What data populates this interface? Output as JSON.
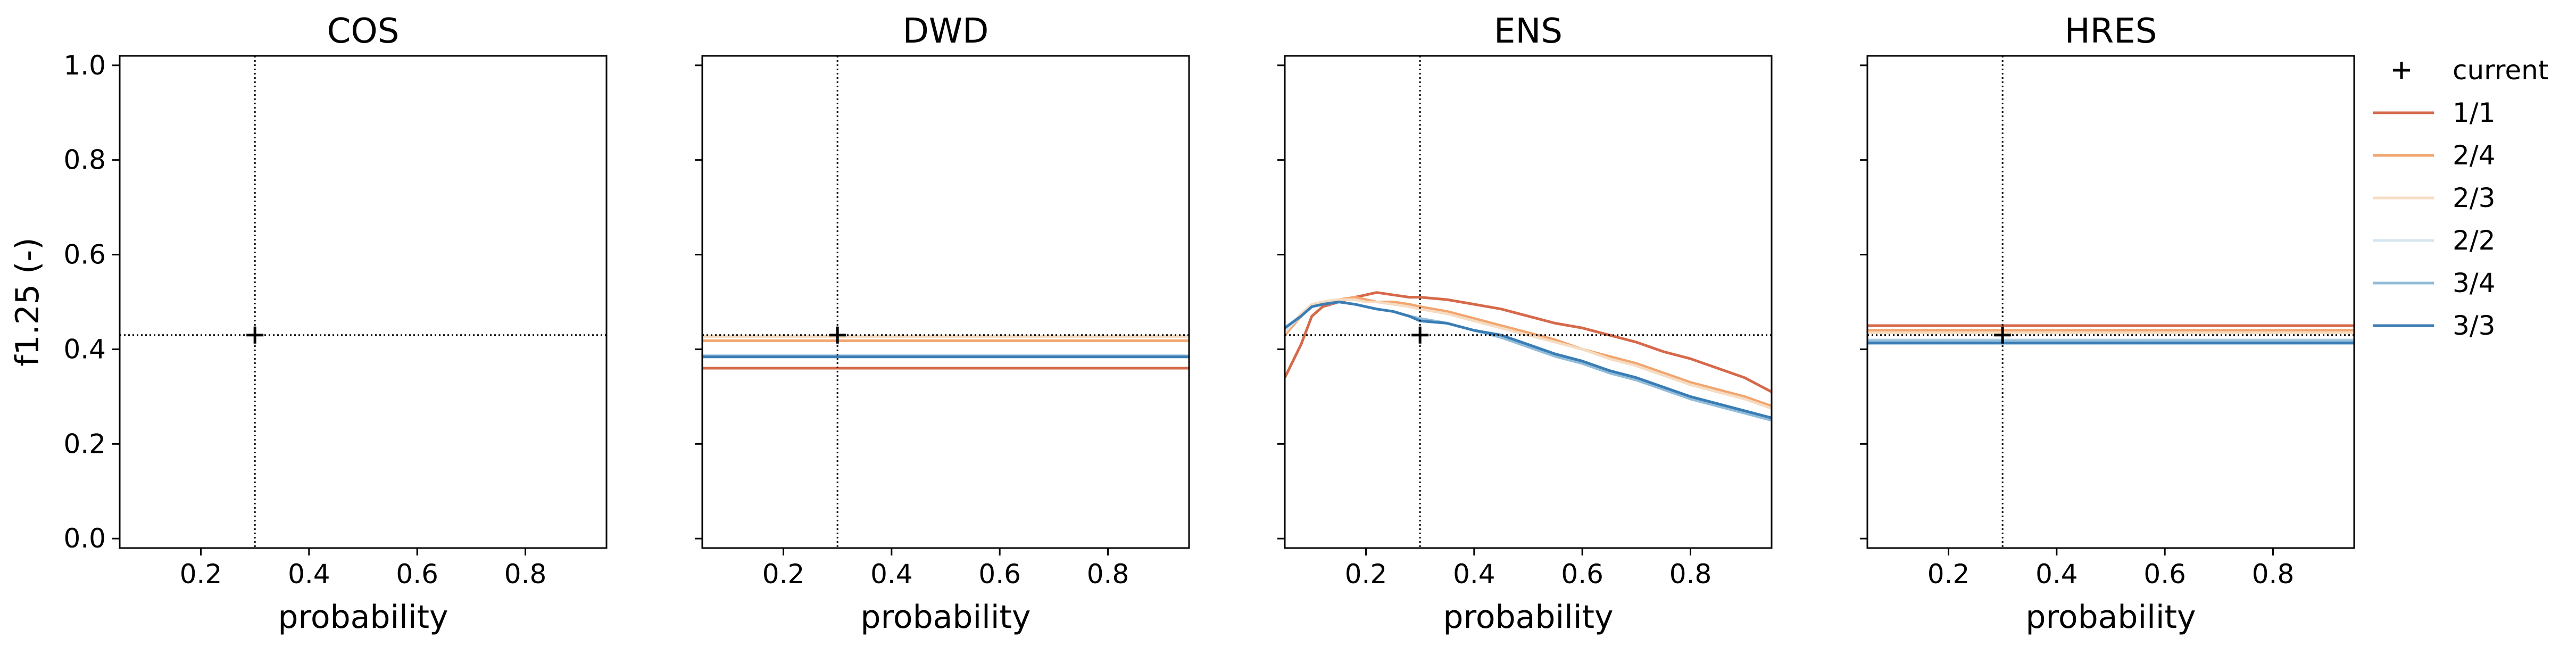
{
  "chart_data": [
    {
      "type": "line",
      "title": "COS",
      "xlabel": "probability",
      "ylabel": "f1.25 (-)",
      "xlim": [
        0.05,
        0.95
      ],
      "ylim": [
        -0.02,
        1.02
      ],
      "xticks": [
        "0.2",
        "0.4",
        "0.6",
        "0.8"
      ],
      "yticks": [
        "0.0",
        "0.2",
        "0.4",
        "0.6",
        "0.8",
        "1.0"
      ],
      "current": {
        "x": 0.3,
        "y": 0.43
      },
      "series": []
    },
    {
      "type": "line",
      "title": "DWD",
      "xlabel": "probability",
      "ylabel": "",
      "xlim": [
        0.05,
        0.95
      ],
      "ylim": [
        -0.02,
        1.02
      ],
      "xticks": [
        "0.2",
        "0.4",
        "0.6",
        "0.8"
      ],
      "yticks": [],
      "current": {
        "x": 0.3,
        "y": 0.43
      },
      "series": [
        {
          "name": "1/1",
          "x": [
            0.05,
            0.95
          ],
          "values": [
            0.36,
            0.36
          ]
        },
        {
          "name": "2/4",
          "x": [
            0.05,
            0.95
          ],
          "values": [
            0.418,
            0.418
          ]
        },
        {
          "name": "2/3",
          "x": [
            0.05,
            0.95
          ],
          "values": [
            0.427,
            0.427
          ]
        },
        {
          "name": "2/2",
          "x": [
            0.05,
            0.95
          ],
          "values": [
            0.385,
            0.385
          ]
        },
        {
          "name": "3/4",
          "x": [
            0.05,
            0.95
          ],
          "values": [
            0.386,
            0.386
          ]
        },
        {
          "name": "3/3",
          "x": [
            0.05,
            0.95
          ],
          "values": [
            0.384,
            0.384
          ]
        }
      ]
    },
    {
      "type": "line",
      "title": "ENS",
      "xlabel": "probability",
      "ylabel": "",
      "xlim": [
        0.05,
        0.95
      ],
      "ylim": [
        -0.02,
        1.02
      ],
      "xticks": [
        "0.2",
        "0.4",
        "0.6",
        "0.8"
      ],
      "yticks": [],
      "current": {
        "x": 0.3,
        "y": 0.43
      },
      "series": [
        {
          "name": "1/1",
          "x": [
            0.05,
            0.08,
            0.1,
            0.12,
            0.15,
            0.18,
            0.2,
            0.22,
            0.25,
            0.28,
            0.3,
            0.35,
            0.4,
            0.45,
            0.5,
            0.55,
            0.6,
            0.65,
            0.7,
            0.75,
            0.8,
            0.85,
            0.9,
            0.95
          ],
          "values": [
            0.34,
            0.41,
            0.47,
            0.49,
            0.5,
            0.51,
            0.515,
            0.52,
            0.515,
            0.51,
            0.51,
            0.505,
            0.495,
            0.485,
            0.47,
            0.455,
            0.445,
            0.43,
            0.415,
            0.395,
            0.38,
            0.36,
            0.34,
            0.31
          ]
        },
        {
          "name": "2/4",
          "x": [
            0.05,
            0.08,
            0.1,
            0.12,
            0.15,
            0.18,
            0.2,
            0.22,
            0.25,
            0.28,
            0.3,
            0.35,
            0.4,
            0.45,
            0.5,
            0.55,
            0.6,
            0.65,
            0.7,
            0.75,
            0.8,
            0.85,
            0.9,
            0.95
          ],
          "values": [
            0.43,
            0.47,
            0.49,
            0.5,
            0.505,
            0.51,
            0.505,
            0.5,
            0.5,
            0.495,
            0.49,
            0.48,
            0.465,
            0.45,
            0.435,
            0.42,
            0.4,
            0.385,
            0.37,
            0.35,
            0.33,
            0.315,
            0.3,
            0.28
          ]
        },
        {
          "name": "2/3",
          "x": [
            0.05,
            0.08,
            0.1,
            0.12,
            0.15,
            0.18,
            0.2,
            0.22,
            0.25,
            0.28,
            0.3,
            0.35,
            0.4,
            0.45,
            0.5,
            0.55,
            0.6,
            0.65,
            0.7,
            0.75,
            0.8,
            0.85,
            0.9,
            0.95
          ],
          "values": [
            0.435,
            0.475,
            0.495,
            0.5,
            0.505,
            0.505,
            0.5,
            0.5,
            0.495,
            0.49,
            0.485,
            0.475,
            0.46,
            0.445,
            0.43,
            0.415,
            0.4,
            0.38,
            0.365,
            0.345,
            0.325,
            0.31,
            0.295,
            0.275
          ]
        },
        {
          "name": "2/2",
          "x": [
            0.05,
            0.08,
            0.1,
            0.12,
            0.15,
            0.18,
            0.2,
            0.22,
            0.25,
            0.28,
            0.3,
            0.35,
            0.4,
            0.45,
            0.5,
            0.55,
            0.6,
            0.65,
            0.7,
            0.75,
            0.8,
            0.85,
            0.9,
            0.95
          ],
          "values": [
            0.44,
            0.47,
            0.49,
            0.495,
            0.5,
            0.495,
            0.49,
            0.485,
            0.48,
            0.47,
            0.465,
            0.455,
            0.44,
            0.425,
            0.41,
            0.39,
            0.375,
            0.355,
            0.34,
            0.32,
            0.3,
            0.285,
            0.27,
            0.255
          ]
        },
        {
          "name": "3/4",
          "x": [
            0.05,
            0.08,
            0.1,
            0.12,
            0.15,
            0.18,
            0.2,
            0.22,
            0.25,
            0.28,
            0.3,
            0.35,
            0.4,
            0.45,
            0.5,
            0.55,
            0.6,
            0.65,
            0.7,
            0.75,
            0.8,
            0.85,
            0.9,
            0.95
          ],
          "values": [
            0.445,
            0.47,
            0.49,
            0.495,
            0.5,
            0.495,
            0.49,
            0.485,
            0.48,
            0.47,
            0.465,
            0.455,
            0.44,
            0.425,
            0.405,
            0.385,
            0.37,
            0.35,
            0.335,
            0.315,
            0.295,
            0.28,
            0.265,
            0.25
          ]
        },
        {
          "name": "3/3",
          "x": [
            0.05,
            0.08,
            0.1,
            0.12,
            0.15,
            0.18,
            0.2,
            0.22,
            0.25,
            0.28,
            0.3,
            0.35,
            0.4,
            0.45,
            0.5,
            0.55,
            0.6,
            0.65,
            0.7,
            0.75,
            0.8,
            0.85,
            0.9,
            0.95
          ],
          "values": [
            0.445,
            0.47,
            0.49,
            0.495,
            0.5,
            0.495,
            0.49,
            0.485,
            0.48,
            0.47,
            0.46,
            0.455,
            0.44,
            0.43,
            0.41,
            0.39,
            0.375,
            0.355,
            0.34,
            0.32,
            0.3,
            0.285,
            0.27,
            0.255
          ]
        }
      ]
    },
    {
      "type": "line",
      "title": "HRES",
      "xlabel": "probability",
      "ylabel": "",
      "xlim": [
        0.05,
        0.95
      ],
      "ylim": [
        -0.02,
        1.02
      ],
      "xticks": [
        "0.2",
        "0.4",
        "0.6",
        "0.8"
      ],
      "yticks": [],
      "current": {
        "x": 0.3,
        "y": 0.43
      },
      "series": [
        {
          "name": "1/1",
          "x": [
            0.05,
            0.95
          ],
          "values": [
            0.45,
            0.45
          ]
        },
        {
          "name": "2/4",
          "x": [
            0.05,
            0.95
          ],
          "values": [
            0.44,
            0.44
          ]
        },
        {
          "name": "2/3",
          "x": [
            0.05,
            0.95
          ],
          "values": [
            0.435,
            0.435
          ]
        },
        {
          "name": "2/2",
          "x": [
            0.05,
            0.95
          ],
          "values": [
            0.42,
            0.42
          ]
        },
        {
          "name": "3/4",
          "x": [
            0.05,
            0.95
          ],
          "values": [
            0.418,
            0.418
          ]
        },
        {
          "name": "3/3",
          "x": [
            0.05,
            0.95
          ],
          "values": [
            0.413,
            0.413
          ]
        }
      ]
    }
  ],
  "legend": {
    "placement": "right",
    "current_label": "current",
    "items": [
      {
        "name": "1/1",
        "color": "#d6694a"
      },
      {
        "name": "2/4",
        "color": "#f2a56f"
      },
      {
        "name": "2/3",
        "color": "#f5dcc2"
      },
      {
        "name": "2/2",
        "color": "#d6e6f1"
      },
      {
        "name": "3/4",
        "color": "#91bcd9"
      },
      {
        "name": "3/3",
        "color": "#3a7db5"
      }
    ]
  }
}
